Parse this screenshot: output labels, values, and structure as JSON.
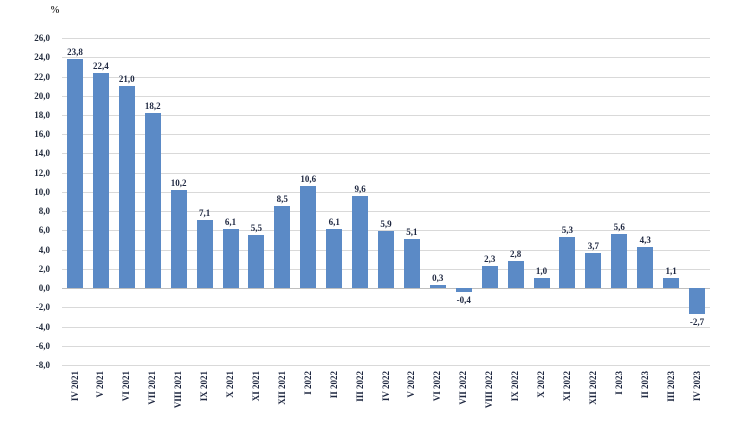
{
  "chart_data": {
    "type": "bar",
    "title": "",
    "unit_label": "%",
    "ylabel": "%",
    "xlabel": "",
    "grid": true,
    "legend": false,
    "decimal_separator": ",",
    "y_min": -8.0,
    "y_max": 26.0,
    "y_step": 2.0,
    "y_tick_labels": [
      "26,0",
      "24,0",
      "22,0",
      "20,0",
      "18,0",
      "16,0",
      "14,0",
      "12,0",
      "10,0",
      "8,0",
      "6,0",
      "4,0",
      "2,0",
      "0,0",
      "-2,0",
      "-4,0",
      "-6,0",
      "-8,0"
    ],
    "categories": [
      "IV 2021",
      "V 2021",
      "VI 2021",
      "VII 2021",
      "VIII 2021",
      "IX 2021",
      "X 2021",
      "XI 2021",
      "XII 2021",
      "I 2022",
      "II 2022",
      "III 2022",
      "IV 2022",
      "V 2022",
      "VI 2022",
      "VII 2022",
      "VIII 2022",
      "IX 2022",
      "X 2022",
      "XI 2022",
      "XII 2022",
      "I 2023",
      "II 2023",
      "III 2023",
      "IV 2023"
    ],
    "values": [
      23.8,
      22.4,
      21.0,
      18.2,
      10.2,
      7.1,
      6.1,
      5.5,
      8.5,
      10.6,
      6.1,
      9.6,
      5.9,
      5.1,
      0.3,
      -0.4,
      2.3,
      2.8,
      1.0,
      5.3,
      3.7,
      5.6,
      4.3,
      1.1,
      -2.7
    ],
    "value_labels": [
      "23,8",
      "22,4",
      "21,0",
      "18,2",
      "10,2",
      "7,1",
      "6,1",
      "5,5",
      "8,5",
      "10,6",
      "6,1",
      "9,6",
      "5,9",
      "5,1",
      "0,3",
      "-0,4",
      "2,3",
      "2,8",
      "1,0",
      "5,3",
      "3,7",
      "5,6",
      "4,3",
      "1,1",
      "-2,7"
    ],
    "colors": {
      "bar": "#5b8ac6",
      "grid": "#d9d9d9",
      "zero_line": "#bfbfbf",
      "text": "#1e2740",
      "background": "#ffffff"
    }
  }
}
